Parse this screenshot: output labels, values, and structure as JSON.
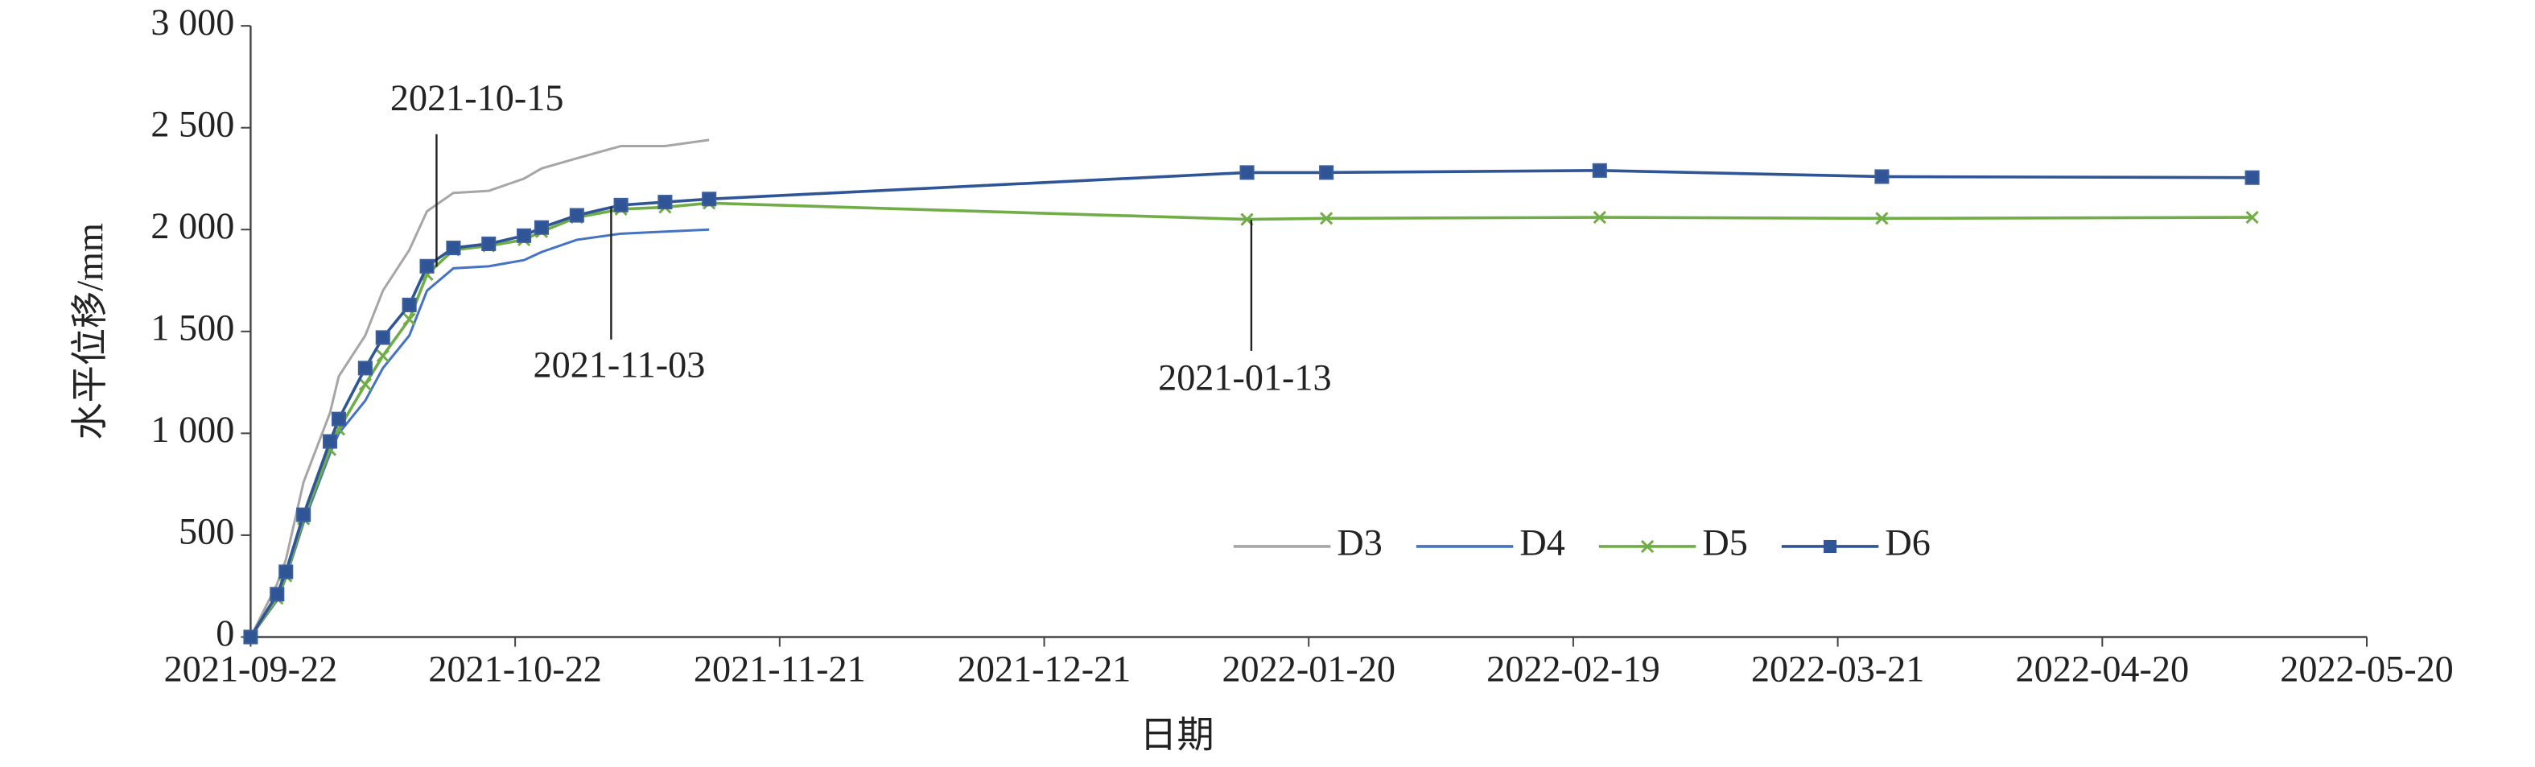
{
  "chart_data": {
    "type": "line",
    "xlabel": "日期",
    "ylabel": "水平位移/mm",
    "x": [
      "2021-09-22",
      "2021-09-25",
      "2021-09-26",
      "2021-09-28",
      "2021-10-01",
      "2021-10-02",
      "2021-10-05",
      "2021-10-07",
      "2021-10-10",
      "2021-10-12",
      "2021-10-15",
      "2021-10-19",
      "2021-10-23",
      "2021-10-25",
      "2021-10-29",
      "2021-11-03",
      "2021-11-08",
      "2021-11-13",
      "2022-01-13",
      "2022-01-22",
      "2022-02-22",
      "2022-03-26",
      "2022-05-07"
    ],
    "series": [
      {
        "name": "D3",
        "color": "#a6a6a6",
        "values": [
          0,
          260,
          380,
          760,
          1100,
          1280,
          1480,
          1700,
          1900,
          2090,
          2180,
          2190,
          2250,
          2300,
          2350,
          2410,
          2410,
          2440,
          null,
          null,
          null,
          null,
          null
        ]
      },
      {
        "name": "D4",
        "color": "#4472c4",
        "values": [
          0,
          180,
          290,
          560,
          900,
          1000,
          1160,
          1320,
          1480,
          1700,
          1810,
          1820,
          1850,
          1890,
          1950,
          1980,
          1990,
          2000,
          null,
          null,
          null,
          null,
          null
        ]
      },
      {
        "name": "D5",
        "color": "#70ad47",
        "marker": "x",
        "values": [
          0,
          190,
          300,
          580,
          920,
          1020,
          1240,
          1380,
          1560,
          1780,
          1900,
          1920,
          1950,
          1990,
          2060,
          2100,
          2110,
          2130,
          2050,
          2055,
          2060,
          2055,
          2060
        ]
      },
      {
        "name": "D6",
        "color": "#2f5597",
        "marker": "square",
        "values": [
          0,
          210,
          320,
          600,
          960,
          1070,
          1320,
          1470,
          1630,
          1820,
          1910,
          1930,
          1970,
          2010,
          2070,
          2120,
          2135,
          2150,
          2280,
          2280,
          2290,
          2260,
          2255
        ]
      }
    ],
    "xlim": [
      "2021-09-22",
      "2022-05-20"
    ],
    "xticks": [
      "2021-09-22",
      "2021-10-22",
      "2021-11-21",
      "2021-12-21",
      "2022-01-20",
      "2022-02-19",
      "2022-03-21",
      "2022-04-20",
      "2022-05-20"
    ],
    "ylim": [
      0,
      3000
    ],
    "yticks": [
      0,
      500,
      {
        "value": 1000,
        "label": "1 000"
      },
      {
        "value": 1500,
        "label": "1 500"
      },
      {
        "value": 2000,
        "label": "2 000"
      },
      {
        "value": 2500,
        "label": "2 500"
      },
      {
        "value": 3000,
        "label": "3 000"
      }
    ],
    "annotations": [
      "2021-10-15",
      "2021-11-03",
      "2021-01-13"
    ],
    "legend": "lower right"
  }
}
